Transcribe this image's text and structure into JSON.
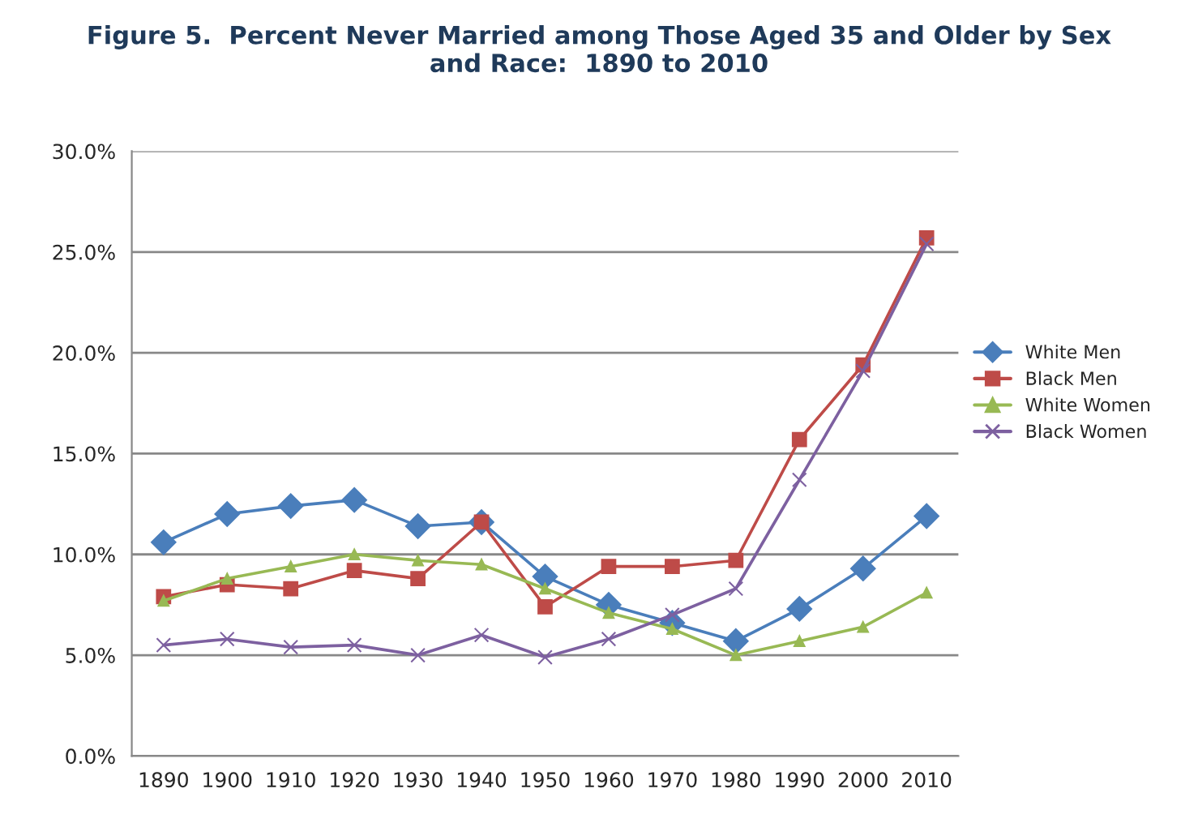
{
  "chart_data": {
    "type": "line",
    "title": "Figure 5.  Percent Never Married among Those Aged 35 and Older by Sex\nand Race:  1890 to 2010",
    "categories": [
      "1890",
      "1900",
      "1910",
      "1920",
      "1930",
      "1940",
      "1950",
      "1960",
      "1970",
      "1980",
      "1990",
      "2000",
      "2010"
    ],
    "series": [
      {
        "name": "White Men",
        "color": "#4a7ebb",
        "marker": "diamond",
        "values": [
          10.6,
          12.0,
          12.4,
          12.7,
          11.4,
          11.6,
          8.9,
          7.5,
          6.6,
          5.7,
          7.3,
          9.3,
          11.9
        ]
      },
      {
        "name": "Black Men",
        "color": "#be4b48",
        "marker": "square",
        "values": [
          7.9,
          8.5,
          8.3,
          9.2,
          8.8,
          11.6,
          7.4,
          9.4,
          9.4,
          9.7,
          15.7,
          19.4,
          25.7
        ]
      },
      {
        "name": "White Women",
        "color": "#98b954",
        "marker": "triangle",
        "values": [
          7.7,
          8.8,
          9.4,
          10.0,
          9.7,
          9.5,
          8.3,
          7.1,
          6.3,
          5.0,
          5.7,
          6.4,
          8.1
        ]
      },
      {
        "name": "Black Women",
        "color": "#7d60a0",
        "marker": "cross",
        "values": [
          5.5,
          5.8,
          5.4,
          5.5,
          5.0,
          6.0,
          4.9,
          5.8,
          7.0,
          8.3,
          13.7,
          19.1,
          25.4
        ]
      }
    ],
    "ylim": [
      0,
      30
    ],
    "yticks": [
      {
        "value": 0,
        "label": "0.0%"
      },
      {
        "value": 5,
        "label": "5.0%"
      },
      {
        "value": 10,
        "label": "10.0%"
      },
      {
        "value": 15,
        "label": "15.0%"
      },
      {
        "value": 20,
        "label": "20.0%"
      },
      {
        "value": 25,
        "label": "25.0%"
      },
      {
        "value": 30,
        "label": "30.0%"
      }
    ],
    "grid": "y",
    "legend": "right"
  }
}
